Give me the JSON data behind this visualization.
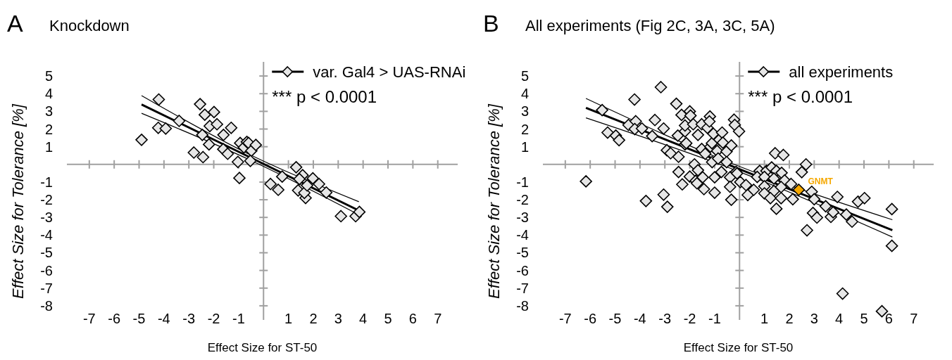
{
  "chart_data": [
    {
      "type": "scatter",
      "title": "Knockdown",
      "xlabel": "Effect Size for ST-50",
      "ylabel": "Effect Size for Tolerance [%]",
      "xlim": [
        -7.9,
        7.8
      ],
      "ylim": [
        -8.8,
        5.8
      ],
      "xticks": [
        -7,
        -6,
        -5,
        -4,
        -3,
        -2,
        -1,
        1,
        2,
        3,
        4,
        5,
        6,
        7
      ],
      "yticks": [
        -8,
        -7,
        -6,
        -5,
        -4,
        -3,
        -2,
        -1,
        1,
        2,
        3,
        4,
        5
      ],
      "grid": false,
      "legend": "top right",
      "marker": "diamond",
      "annotations": [
        "A",
        "*** p < 0.0001"
      ],
      "series": [
        {
          "name": "var. Gal4 > UAS-RNAi",
          "color": "#e6e6e6",
          "x": [
            -4.9,
            -4.21,
            -4.23,
            -3.93,
            -3.39,
            -2.8,
            -2.55,
            -2.43,
            -2.36,
            -2.46,
            -2.16,
            -2.19,
            -1.99,
            -1.87,
            -1.61,
            -1.3,
            -1.62,
            -1.44,
            -1.03,
            -0.97,
            -0.94,
            -0.79,
            -0.67,
            -0.6,
            -0.49,
            -0.53,
            -0.31,
            0.28,
            0.59,
            0.75,
            1.31,
            1.57,
            1.44,
            1.39,
            1.69,
            1.64,
            1.75,
            1.98,
            2.23,
            2.52,
            3.11,
            3.7,
            3.85
          ],
          "values": [
            1.39,
            3.67,
            2.07,
            2.03,
            2.46,
            0.67,
            3.41,
            0.41,
            2.81,
            1.67,
            2.17,
            1.13,
            2.96,
            2.27,
            1.67,
            2.07,
            0.86,
            0.6,
            0.14,
            -0.77,
            1.21,
            0.96,
            1.27,
            1.21,
            0.77,
            0.2,
            1.1,
            -1.11,
            -1.44,
            -0.69,
            -0.16,
            -0.61,
            -0.83,
            -1.47,
            -1.9,
            -1.61,
            -1.19,
            -0.79,
            -1.11,
            -1.59,
            -2.93,
            -2.93,
            -2.69
          ]
        },
        {
          "type": "line",
          "color": "#000000",
          "marker": "none",
          "x": [
            -4.9,
            -0.5,
            3.83
          ],
          "values": [
            3.89,
            0.52,
            -2.11
          ]
        },
        {
          "type": "line",
          "color": "#000000",
          "marker": "none",
          "x": [
            -4.9,
            -0.5,
            3.83
          ],
          "values": [
            2.89,
            0.22,
            -2.85
          ]
        },
        {
          "type": "line",
          "color": "#000000",
          "marker": "none",
          "x": [
            -4.9,
            -0.5,
            3.83
          ],
          "values": [
            3.39,
            0.37,
            -2.61
          ]
        }
      ]
    },
    {
      "type": "scatter",
      "title": "All experiments (Fig 2C, 3A, 3C, 5A)",
      "xlabel": "Effect Size for ST-50",
      "ylabel": "Effect Size for Tolerance [%]",
      "xlim": [
        -7.9,
        7.8
      ],
      "ylim": [
        -8.8,
        5.8
      ],
      "xticks": [
        -7,
        -6,
        -5,
        -4,
        -3,
        -2,
        -1,
        1,
        2,
        3,
        4,
        5,
        6,
        7
      ],
      "yticks": [
        -8,
        -7,
        -6,
        -5,
        -4,
        -3,
        -2,
        -1,
        1,
        2,
        3,
        4,
        5
      ],
      "grid": false,
      "legend": "top right",
      "marker": "diamond",
      "annotations": [
        "B",
        "*** p < 0.0001",
        {
          "text": "GNMT",
          "x": 2.38,
          "y": -1.44
        }
      ],
      "series": [
        {
          "name": "all experiments",
          "color": "#e6e6e6",
          "x": [
            -6.17,
            -5.52,
            -5.3,
            -4.97,
            -4.84,
            -4.46,
            -4.22,
            -4.17,
            -4.21,
            -3.92,
            -3.76,
            -3.51,
            -3.4,
            -3.16,
            -3.05,
            -3.05,
            -2.9,
            -2.92,
            -2.77,
            -2.54,
            -2.48,
            -2.45,
            -2.45,
            -2.33,
            -2.3,
            -2.19,
            -2.19,
            -2.19,
            -2.14,
            -2.0,
            -1.97,
            -2.0,
            -1.86,
            -1.81,
            -1.76,
            -1.71,
            -1.67,
            -1.67,
            -1.52,
            -1.52,
            -1.48,
            -1.43,
            -1.38,
            -1.29,
            -1.19,
            -1.21,
            -1.17,
            -1.11,
            -1.1,
            -1.05,
            -1.0,
            -1.0,
            -0.9,
            -0.86,
            -0.81,
            -0.73,
            -0.7,
            -0.67,
            -0.52,
            -0.52,
            -0.38,
            -0.38,
            -0.33,
            -0.33,
            -0.22,
            -0.19,
            -0.02,
            -0.14,
            0.03,
            0.26,
            0.33,
            1.43,
            1.76,
            2.67,
            2.5,
            -0.1,
            0.81,
            1.08,
            1.29,
            1.48,
            1.69,
            0.71,
            1.0,
            1.38,
            1.81,
            2.07,
            0.57,
            1.0,
            1.38,
            1.67,
            1.0,
            1.24,
            1.67,
            2.14,
            1.48,
            2.9,
            3.0,
            2.71,
            2.95,
            3.11,
            3.46,
            3.67,
            3.76,
            3.93,
            4.29,
            4.52,
            4.76,
            5.02,
            6.12,
            6.12,
            4.14,
            5.72
          ],
          "values": [
            -0.96,
            3.07,
            1.8,
            1.63,
            1.37,
            2.23,
            3.67,
            2.44,
            2.0,
            2.03,
            -2.07,
            1.6,
            2.51,
            4.37,
            2.03,
            -1.71,
            -2.4,
            0.8,
            0.63,
            3.43,
            1.63,
            -0.43,
            0.43,
            2.8,
            -1.13,
            1.87,
            2.2,
            1.13,
            1.2,
            3.0,
            2.76,
            -0.69,
            2.27,
            0.0,
            -0.93,
            -1.07,
            1.67,
            -0.33,
            2.27,
            0.87,
            -0.73,
            -1.4,
            0.6,
            2.07,
            2.71,
            2.43,
            1.0,
            1.2,
            0.13,
            1.73,
            -0.73,
            -1.6,
            0.76,
            0.33,
            1.4,
            -0.43,
            1.8,
            1.23,
            0.73,
            0.13,
            -0.73,
            -1.27,
            1.07,
            -2.0,
            2.53,
            2.23,
            1.87,
            -0.43,
            -1.0,
            -1.17,
            -1.73,
            0.63,
            0.53,
            0.0,
            -0.44,
            -0.51,
            -0.37,
            -0.37,
            -0.17,
            -0.37,
            -0.48,
            -0.71,
            -0.71,
            -0.8,
            -0.91,
            -1.11,
            -1.44,
            -1.24,
            -1.51,
            -1.28,
            -1.64,
            -1.91,
            -1.91,
            -1.97,
            -2.51,
            -1.55,
            -1.97,
            -3.73,
            -2.75,
            -3.01,
            -2.37,
            -2.97,
            -2.71,
            -1.84,
            -2.84,
            -3.24,
            -2.11,
            -1.91,
            -2.53,
            -4.61,
            -7.31,
            -8.31
          ]
        },
        {
          "type": "scatter",
          "color": "#f5a800",
          "x": [
            2.38
          ],
          "values": [
            -1.44
          ]
        },
        {
          "type": "line",
          "color": "#000000",
          "marker": "none",
          "x": [
            -6.17,
            0,
            6.14
          ],
          "values": [
            3.73,
            -0.12,
            -3.13
          ]
        },
        {
          "type": "line",
          "color": "#000000",
          "marker": "none",
          "x": [
            -6.17,
            0,
            6.14
          ],
          "values": [
            2.63,
            -0.42,
            -4.11
          ]
        },
        {
          "type": "line",
          "color": "#000000",
          "marker": "none",
          "x": [
            -6.17,
            0,
            6.14
          ],
          "values": [
            3.2,
            -0.27,
            -3.72
          ]
        }
      ]
    }
  ]
}
